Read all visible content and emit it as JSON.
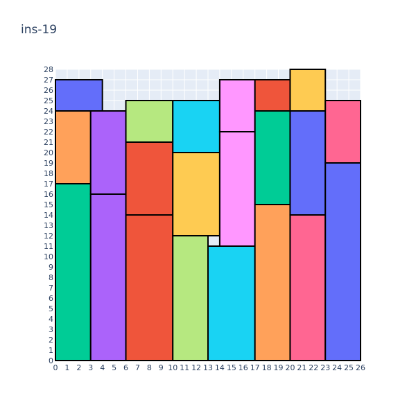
{
  "chart_data": {
    "type": "bar",
    "title": "ins-19",
    "xlabel": "",
    "ylabel": "",
    "xlim": [
      0,
      26
    ],
    "ylim": [
      0,
      28
    ],
    "x_ticks": [
      0,
      1,
      2,
      3,
      4,
      5,
      6,
      7,
      8,
      9,
      10,
      11,
      12,
      13,
      14,
      15,
      16,
      17,
      18,
      19,
      20,
      21,
      22,
      23,
      24,
      25,
      26
    ],
    "y_ticks": [
      0,
      1,
      2,
      3,
      4,
      5,
      6,
      7,
      8,
      9,
      10,
      11,
      12,
      13,
      14,
      15,
      16,
      17,
      18,
      19,
      20,
      21,
      22,
      23,
      24,
      25,
      26,
      27,
      28
    ],
    "grid": true,
    "plot_bgcolor": "#e5ecf6",
    "bar_outline_color": "#000000",
    "rectangles": [
      {
        "x0": 0,
        "x1": 3,
        "y0": 0,
        "y1": 17,
        "color": "#00cc96"
      },
      {
        "x0": 0,
        "x1": 3,
        "y0": 17,
        "y1": 24,
        "color": "#ffa15a"
      },
      {
        "x0": 0,
        "x1": 4,
        "y0": 24,
        "y1": 27,
        "color": "#636efa"
      },
      {
        "x0": 3,
        "x1": 6,
        "y0": 0,
        "y1": 16,
        "color": "#ab63fa"
      },
      {
        "x0": 3,
        "x1": 6,
        "y0": 16,
        "y1": 24,
        "color": "#ab63fa"
      },
      {
        "x0": 6,
        "x1": 10,
        "y0": 0,
        "y1": 14,
        "color": "#ef553b"
      },
      {
        "x0": 6,
        "x1": 10,
        "y0": 14,
        "y1": 21,
        "color": "#ef553b"
      },
      {
        "x0": 6,
        "x1": 10,
        "y0": 21,
        "y1": 25,
        "color": "#b6e880"
      },
      {
        "x0": 10,
        "x1": 13,
        "y0": 0,
        "y1": 12,
        "color": "#b6e880"
      },
      {
        "x0": 10,
        "x1": 14,
        "y0": 12,
        "y1": 20,
        "color": "#fecb52"
      },
      {
        "x0": 10,
        "x1": 14,
        "y0": 20,
        "y1": 25,
        "color": "#19d3f3"
      },
      {
        "x0": 13,
        "x1": 17,
        "y0": 0,
        "y1": 11,
        "color": "#19d3f3"
      },
      {
        "x0": 14,
        "x1": 17,
        "y0": 11,
        "y1": 22,
        "color": "#ff97ff"
      },
      {
        "x0": 14,
        "x1": 17,
        "y0": 22,
        "y1": 27,
        "color": "#ff97ff"
      },
      {
        "x0": 17,
        "x1": 20,
        "y0": 0,
        "y1": 15,
        "color": "#ffa15a"
      },
      {
        "x0": 17,
        "x1": 20,
        "y0": 15,
        "y1": 24,
        "color": "#00cc96"
      },
      {
        "x0": 17,
        "x1": 20,
        "y0": 24,
        "y1": 27,
        "color": "#ef553b"
      },
      {
        "x0": 20,
        "x1": 23,
        "y0": 0,
        "y1": 14,
        "color": "#ff6692"
      },
      {
        "x0": 20,
        "x1": 23,
        "y0": 14,
        "y1": 24,
        "color": "#636efa"
      },
      {
        "x0": 20,
        "x1": 23,
        "y0": 24,
        "y1": 28,
        "color": "#fecb52"
      },
      {
        "x0": 23,
        "x1": 26,
        "y0": 0,
        "y1": 19,
        "color": "#636efa"
      },
      {
        "x0": 23,
        "x1": 26,
        "y0": 19,
        "y1": 25,
        "color": "#ff6692"
      }
    ]
  }
}
